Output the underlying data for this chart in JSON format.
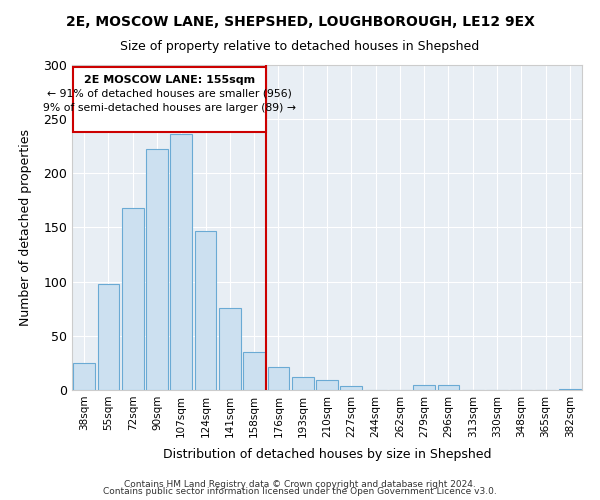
{
  "title": "2E, MOSCOW LANE, SHEPSHED, LOUGHBOROUGH, LE12 9EX",
  "subtitle": "Size of property relative to detached houses in Shepshed",
  "xlabel": "Distribution of detached houses by size in Shepshed",
  "ylabel": "Number of detached properties",
  "bar_color": "#cce0f0",
  "bar_edge_color": "#6aaad4",
  "categories": [
    "38sqm",
    "55sqm",
    "72sqm",
    "90sqm",
    "107sqm",
    "124sqm",
    "141sqm",
    "158sqm",
    "176sqm",
    "193sqm",
    "210sqm",
    "227sqm",
    "244sqm",
    "262sqm",
    "279sqm",
    "296sqm",
    "313sqm",
    "330sqm",
    "348sqm",
    "365sqm",
    "382sqm"
  ],
  "values": [
    25,
    98,
    168,
    222,
    236,
    147,
    76,
    35,
    21,
    12,
    9,
    4,
    0,
    0,
    5,
    5,
    0,
    0,
    0,
    0,
    1
  ],
  "annotation_title": "2E MOSCOW LANE: 155sqm",
  "annotation_line1": "← 91% of detached houses are smaller (956)",
  "annotation_line2": "9% of semi-detached houses are larger (89) →",
  "vline_index": 7.5,
  "ylim": [
    0,
    300
  ],
  "yticks": [
    0,
    50,
    100,
    150,
    200,
    250,
    300
  ],
  "footnote1": "Contains HM Land Registry data © Crown copyright and database right 2024.",
  "footnote2": "Contains public sector information licensed under the Open Government Licence v3.0.",
  "background_color": "#ffffff",
  "plot_background": "#e8eef4",
  "grid_color": "#ffffff"
}
